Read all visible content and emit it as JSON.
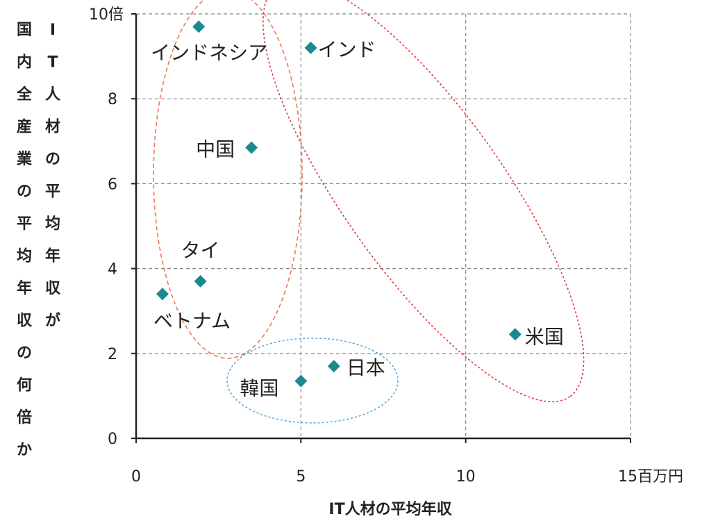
{
  "chart_data": {
    "type": "scatter",
    "xlabel": "IT人材の平均年収",
    "ylabel_columns": [
      [
        "I",
        "T",
        "人",
        "材",
        "の",
        "平",
        "均",
        "年",
        "収",
        "が"
      ],
      [
        "国",
        "内",
        "全",
        "産",
        "業",
        "の",
        "平",
        "均",
        "年",
        "収",
        "の",
        "何",
        "倍",
        "か"
      ]
    ],
    "xlim": [
      0,
      15
    ],
    "ylim": [
      0,
      10
    ],
    "x_ticks": [
      {
        "value": 0,
        "label": "0"
      },
      {
        "value": 5,
        "label": "5"
      },
      {
        "value": 10,
        "label": "10"
      },
      {
        "value": 15,
        "label": "15百万円"
      }
    ],
    "y_ticks": [
      {
        "value": 0,
        "label": "0"
      },
      {
        "value": 2,
        "label": "2"
      },
      {
        "value": 4,
        "label": "4"
      },
      {
        "value": 6,
        "label": "6"
      },
      {
        "value": 8,
        "label": "8"
      },
      {
        "value": 10,
        "label": "10倍"
      }
    ],
    "grid": true,
    "marker_color": "#1a8a8f",
    "points": [
      {
        "label": "インドネシア",
        "x": 1.9,
        "y": 9.7
      },
      {
        "label": "インド",
        "x": 5.3,
        "y": 9.2
      },
      {
        "label": "中国",
        "x": 3.5,
        "y": 6.85
      },
      {
        "label": "タイ",
        "x": 1.95,
        "y": 3.7
      },
      {
        "label": "ベトナム",
        "x": 0.8,
        "y": 3.4
      },
      {
        "label": "米国",
        "x": 11.5,
        "y": 2.45
      },
      {
        "label": "日本",
        "x": 6.0,
        "y": 1.7
      },
      {
        "label": "韓国",
        "x": 5.0,
        "y": 1.35
      }
    ],
    "groups": [
      {
        "members": [
          "インドネシア",
          "中国",
          "タイ",
          "ベトナム"
        ],
        "color": "#ee7755",
        "style": "dashed ellipse"
      },
      {
        "members": [
          "インド",
          "米国"
        ],
        "color": "#e03a3a",
        "style": "dotted ellipse"
      },
      {
        "members": [
          "日本",
          "韓国"
        ],
        "color": "#55aadd",
        "style": "dotted ellipse"
      }
    ]
  }
}
